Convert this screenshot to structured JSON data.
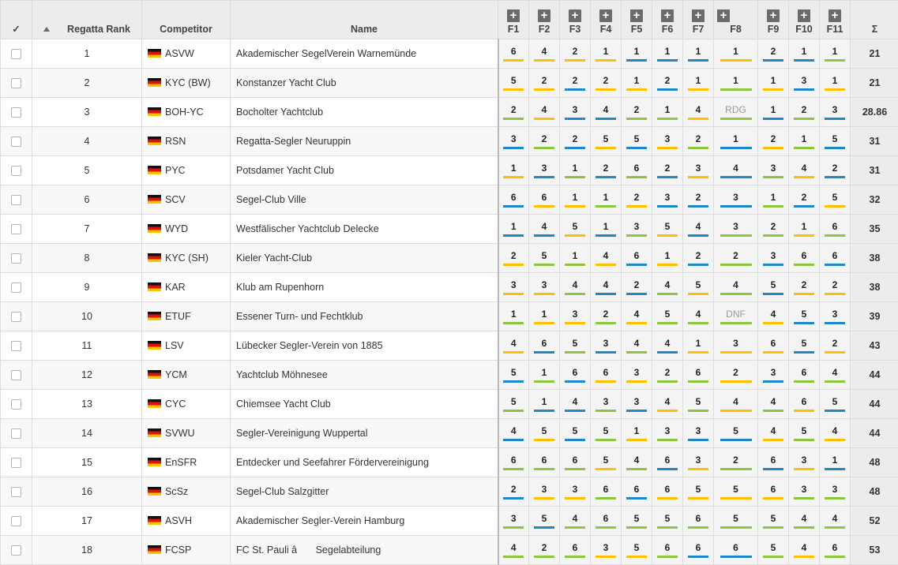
{
  "header": {
    "check": "✓",
    "rank": "Regatta Rank",
    "competitor": "Competitor",
    "name": "Name",
    "races": [
      "F1",
      "F2",
      "F3",
      "F4",
      "F5",
      "F6",
      "F7",
      "F8",
      "F9",
      "F10",
      "F11"
    ],
    "expand_glyph": "+",
    "sum": "Σ"
  },
  "fleet_colors": {
    "yellow": "#ffbf00",
    "blue": "#1e88c8",
    "green": "#8cc63f"
  },
  "rows": [
    {
      "rank": "1",
      "comp": "ASVW",
      "name": "Akademischer SegelVerein Warnemünde",
      "total": "21",
      "races": [
        {
          "v": "6",
          "c": "yellow"
        },
        {
          "v": "4",
          "c": "yellow"
        },
        {
          "v": "2",
          "c": "yellow"
        },
        {
          "v": "1",
          "c": "yellow"
        },
        {
          "v": "1",
          "c": "blue"
        },
        {
          "v": "1",
          "c": "blue"
        },
        {
          "v": "1",
          "c": "blue"
        },
        {
          "v": "1",
          "c": "yellow"
        },
        {
          "v": "2",
          "c": "blue"
        },
        {
          "v": "1",
          "c": "blue"
        },
        {
          "v": "1",
          "c": "green"
        }
      ]
    },
    {
      "rank": "2",
      "comp": "KYC (BW)",
      "name": "Konstanzer Yacht Club",
      "total": "21",
      "races": [
        {
          "v": "5",
          "c": "yellow"
        },
        {
          "v": "2",
          "c": "yellow"
        },
        {
          "v": "2",
          "c": "blue"
        },
        {
          "v": "2",
          "c": "yellow"
        },
        {
          "v": "1",
          "c": "yellow"
        },
        {
          "v": "2",
          "c": "blue"
        },
        {
          "v": "1",
          "c": "yellow"
        },
        {
          "v": "1",
          "c": "green"
        },
        {
          "v": "1",
          "c": "yellow"
        },
        {
          "v": "3",
          "c": "blue"
        },
        {
          "v": "1",
          "c": "yellow"
        }
      ]
    },
    {
      "rank": "3",
      "comp": "BOH-YC",
      "name": "Bocholter Yachtclub",
      "total": "28.86",
      "races": [
        {
          "v": "2",
          "c": "green"
        },
        {
          "v": "4",
          "c": "yellow"
        },
        {
          "v": "3",
          "c": "blue"
        },
        {
          "v": "4",
          "c": "blue"
        },
        {
          "v": "2",
          "c": "green"
        },
        {
          "v": "1",
          "c": "green"
        },
        {
          "v": "4",
          "c": "yellow"
        },
        {
          "v": "RDG",
          "c": "green"
        },
        {
          "v": "1",
          "c": "blue"
        },
        {
          "v": "2",
          "c": "green"
        },
        {
          "v": "3",
          "c": "blue"
        }
      ]
    },
    {
      "rank": "4",
      "comp": "RSN",
      "name": "Regatta-Segler Neuruppin",
      "total": "31",
      "races": [
        {
          "v": "3",
          "c": "blue"
        },
        {
          "v": "2",
          "c": "green"
        },
        {
          "v": "2",
          "c": "blue"
        },
        {
          "v": "5",
          "c": "yellow"
        },
        {
          "v": "5",
          "c": "blue"
        },
        {
          "v": "3",
          "c": "yellow"
        },
        {
          "v": "2",
          "c": "green"
        },
        {
          "v": "1",
          "c": "blue"
        },
        {
          "v": "2",
          "c": "yellow"
        },
        {
          "v": "1",
          "c": "green"
        },
        {
          "v": "5",
          "c": "blue"
        }
      ]
    },
    {
      "rank": "5",
      "comp": "PYC",
      "name": "Potsdamer Yacht Club",
      "total": "31",
      "races": [
        {
          "v": "1",
          "c": "yellow"
        },
        {
          "v": "3",
          "c": "blue"
        },
        {
          "v": "1",
          "c": "green"
        },
        {
          "v": "2",
          "c": "blue"
        },
        {
          "v": "6",
          "c": "green"
        },
        {
          "v": "2",
          "c": "blue"
        },
        {
          "v": "3",
          "c": "yellow"
        },
        {
          "v": "4",
          "c": "blue"
        },
        {
          "v": "3",
          "c": "green"
        },
        {
          "v": "4",
          "c": "yellow"
        },
        {
          "v": "2",
          "c": "blue"
        }
      ]
    },
    {
      "rank": "6",
      "comp": "SCV",
      "name": "Segel-Club Ville",
      "total": "32",
      "races": [
        {
          "v": "6",
          "c": "blue"
        },
        {
          "v": "6",
          "c": "yellow"
        },
        {
          "v": "1",
          "c": "yellow"
        },
        {
          "v": "1",
          "c": "green"
        },
        {
          "v": "2",
          "c": "yellow"
        },
        {
          "v": "3",
          "c": "blue"
        },
        {
          "v": "2",
          "c": "blue"
        },
        {
          "v": "3",
          "c": "blue"
        },
        {
          "v": "1",
          "c": "green"
        },
        {
          "v": "2",
          "c": "blue"
        },
        {
          "v": "5",
          "c": "yellow"
        }
      ]
    },
    {
      "rank": "7",
      "comp": "WYD",
      "name": "Westfälischer Yachtclub Delecke",
      "total": "35",
      "races": [
        {
          "v": "1",
          "c": "blue"
        },
        {
          "v": "4",
          "c": "blue"
        },
        {
          "v": "5",
          "c": "yellow"
        },
        {
          "v": "1",
          "c": "blue"
        },
        {
          "v": "3",
          "c": "green"
        },
        {
          "v": "5",
          "c": "yellow"
        },
        {
          "v": "4",
          "c": "blue"
        },
        {
          "v": "3",
          "c": "green"
        },
        {
          "v": "2",
          "c": "green"
        },
        {
          "v": "1",
          "c": "yellow"
        },
        {
          "v": "6",
          "c": "green"
        }
      ]
    },
    {
      "rank": "8",
      "comp": "KYC (SH)",
      "name": "Kieler Yacht-Club",
      "total": "38",
      "races": [
        {
          "v": "2",
          "c": "yellow"
        },
        {
          "v": "5",
          "c": "green"
        },
        {
          "v": "1",
          "c": "green"
        },
        {
          "v": "4",
          "c": "yellow"
        },
        {
          "v": "6",
          "c": "blue"
        },
        {
          "v": "1",
          "c": "yellow"
        },
        {
          "v": "2",
          "c": "blue"
        },
        {
          "v": "2",
          "c": "green"
        },
        {
          "v": "3",
          "c": "blue"
        },
        {
          "v": "6",
          "c": "green"
        },
        {
          "v": "6",
          "c": "blue"
        }
      ]
    },
    {
      "rank": "9",
      "comp": "KAR",
      "name": "Klub am Rupenhorn",
      "total": "38",
      "races": [
        {
          "v": "3",
          "c": "yellow"
        },
        {
          "v": "3",
          "c": "yellow"
        },
        {
          "v": "4",
          "c": "green"
        },
        {
          "v": "4",
          "c": "blue"
        },
        {
          "v": "2",
          "c": "blue"
        },
        {
          "v": "4",
          "c": "green"
        },
        {
          "v": "5",
          "c": "yellow"
        },
        {
          "v": "4",
          "c": "green"
        },
        {
          "v": "5",
          "c": "blue"
        },
        {
          "v": "2",
          "c": "yellow"
        },
        {
          "v": "2",
          "c": "yellow"
        }
      ]
    },
    {
      "rank": "10",
      "comp": "ETUF",
      "name": "Essener Turn- und Fechtklub",
      "total": "39",
      "races": [
        {
          "v": "1",
          "c": "green"
        },
        {
          "v": "1",
          "c": "yellow"
        },
        {
          "v": "3",
          "c": "yellow"
        },
        {
          "v": "2",
          "c": "green"
        },
        {
          "v": "4",
          "c": "yellow"
        },
        {
          "v": "5",
          "c": "green"
        },
        {
          "v": "4",
          "c": "green"
        },
        {
          "v": "DNF",
          "c": "green"
        },
        {
          "v": "4",
          "c": "yellow"
        },
        {
          "v": "5",
          "c": "blue"
        },
        {
          "v": "3",
          "c": "blue"
        }
      ]
    },
    {
      "rank": "11",
      "comp": "LSV",
      "name": "Lübecker Segler-Verein von 1885",
      "total": "43",
      "races": [
        {
          "v": "4",
          "c": "yellow"
        },
        {
          "v": "6",
          "c": "blue"
        },
        {
          "v": "5",
          "c": "green"
        },
        {
          "v": "3",
          "c": "blue"
        },
        {
          "v": "4",
          "c": "green"
        },
        {
          "v": "4",
          "c": "blue"
        },
        {
          "v": "1",
          "c": "yellow"
        },
        {
          "v": "3",
          "c": "yellow"
        },
        {
          "v": "6",
          "c": "yellow"
        },
        {
          "v": "5",
          "c": "blue"
        },
        {
          "v": "2",
          "c": "yellow"
        }
      ]
    },
    {
      "rank": "12",
      "comp": "YCM",
      "name": "Yachtclub Möhnesee",
      "total": "44",
      "races": [
        {
          "v": "5",
          "c": "blue"
        },
        {
          "v": "1",
          "c": "green"
        },
        {
          "v": "6",
          "c": "blue"
        },
        {
          "v": "6",
          "c": "yellow"
        },
        {
          "v": "3",
          "c": "yellow"
        },
        {
          "v": "2",
          "c": "green"
        },
        {
          "v": "6",
          "c": "green"
        },
        {
          "v": "2",
          "c": "yellow"
        },
        {
          "v": "3",
          "c": "blue"
        },
        {
          "v": "6",
          "c": "green"
        },
        {
          "v": "4",
          "c": "green"
        }
      ]
    },
    {
      "rank": "13",
      "comp": "CYC",
      "name": "Chiemsee Yacht Club",
      "total": "44",
      "races": [
        {
          "v": "5",
          "c": "green"
        },
        {
          "v": "1",
          "c": "blue"
        },
        {
          "v": "4",
          "c": "blue"
        },
        {
          "v": "3",
          "c": "green"
        },
        {
          "v": "3",
          "c": "blue"
        },
        {
          "v": "4",
          "c": "yellow"
        },
        {
          "v": "5",
          "c": "green"
        },
        {
          "v": "4",
          "c": "yellow"
        },
        {
          "v": "4",
          "c": "green"
        },
        {
          "v": "6",
          "c": "yellow"
        },
        {
          "v": "5",
          "c": "blue"
        }
      ]
    },
    {
      "rank": "14",
      "comp": "SVWU",
      "name": "Segler-Vereinigung Wuppertal",
      "total": "44",
      "races": [
        {
          "v": "4",
          "c": "blue"
        },
        {
          "v": "5",
          "c": "yellow"
        },
        {
          "v": "5",
          "c": "blue"
        },
        {
          "v": "5",
          "c": "green"
        },
        {
          "v": "1",
          "c": "yellow"
        },
        {
          "v": "3",
          "c": "green"
        },
        {
          "v": "3",
          "c": "blue"
        },
        {
          "v": "5",
          "c": "blue"
        },
        {
          "v": "4",
          "c": "yellow"
        },
        {
          "v": "5",
          "c": "green"
        },
        {
          "v": "4",
          "c": "yellow"
        }
      ]
    },
    {
      "rank": "15",
      "comp": "EnSFR",
      "name": "Entdecker und Seefahrer Fördervereinigung",
      "total": "48",
      "races": [
        {
          "v": "6",
          "c": "green"
        },
        {
          "v": "6",
          "c": "green"
        },
        {
          "v": "6",
          "c": "green"
        },
        {
          "v": "5",
          "c": "yellow"
        },
        {
          "v": "4",
          "c": "green"
        },
        {
          "v": "6",
          "c": "blue"
        },
        {
          "v": "3",
          "c": "yellow"
        },
        {
          "v": "2",
          "c": "green"
        },
        {
          "v": "6",
          "c": "blue"
        },
        {
          "v": "3",
          "c": "yellow"
        },
        {
          "v": "1",
          "c": "blue"
        }
      ]
    },
    {
      "rank": "16",
      "comp": "ScSz",
      "name": "Segel-Club Salzgitter",
      "total": "48",
      "races": [
        {
          "v": "2",
          "c": "blue"
        },
        {
          "v": "3",
          "c": "yellow"
        },
        {
          "v": "3",
          "c": "yellow"
        },
        {
          "v": "6",
          "c": "green"
        },
        {
          "v": "6",
          "c": "blue"
        },
        {
          "v": "6",
          "c": "yellow"
        },
        {
          "v": "5",
          "c": "yellow"
        },
        {
          "v": "5",
          "c": "yellow"
        },
        {
          "v": "6",
          "c": "yellow"
        },
        {
          "v": "3",
          "c": "green"
        },
        {
          "v": "3",
          "c": "green"
        }
      ]
    },
    {
      "rank": "17",
      "comp": "ASVH",
      "name": "Akademischer Segler-Verein Hamburg",
      "total": "52",
      "races": [
        {
          "v": "3",
          "c": "green"
        },
        {
          "v": "5",
          "c": "blue"
        },
        {
          "v": "4",
          "c": "green"
        },
        {
          "v": "6",
          "c": "green"
        },
        {
          "v": "5",
          "c": "green"
        },
        {
          "v": "5",
          "c": "green"
        },
        {
          "v": "6",
          "c": "green"
        },
        {
          "v": "5",
          "c": "green"
        },
        {
          "v": "5",
          "c": "green"
        },
        {
          "v": "4",
          "c": "green"
        },
        {
          "v": "4",
          "c": "green"
        }
      ]
    },
    {
      "rank": "18",
      "comp": "FCSP",
      "name": "FC St. Pauli â Segelabteilung",
      "total": "53",
      "races": [
        {
          "v": "4",
          "c": "green"
        },
        {
          "v": "2",
          "c": "green"
        },
        {
          "v": "6",
          "c": "green"
        },
        {
          "v": "3",
          "c": "yellow"
        },
        {
          "v": "5",
          "c": "yellow"
        },
        {
          "v": "6",
          "c": "green"
        },
        {
          "v": "6",
          "c": "blue"
        },
        {
          "v": "6",
          "c": "blue"
        },
        {
          "v": "5",
          "c": "green"
        },
        {
          "v": "4",
          "c": "yellow"
        },
        {
          "v": "6",
          "c": "green"
        }
      ]
    }
  ]
}
